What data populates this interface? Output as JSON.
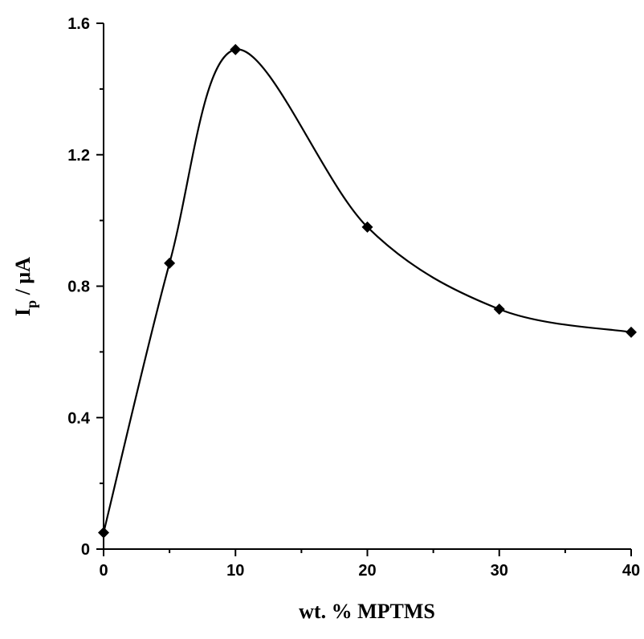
{
  "chart_data": {
    "type": "line",
    "title": "",
    "xlabel": "wt. % MPTMS",
    "ylabel": {
      "main": "I",
      "subscript": "p",
      "rest": " / μA"
    },
    "xlim": [
      0,
      40
    ],
    "ylim": [
      0,
      1.6
    ],
    "x_ticks": [
      0,
      10,
      20,
      30,
      40
    ],
    "x_tick_labels": [
      "0",
      "10",
      "20",
      "30",
      "40"
    ],
    "y_ticks": [
      0,
      0.4,
      0.8,
      1.2,
      1.6
    ],
    "y_tick_labels": [
      "0",
      "0.4",
      "0.8",
      "1.2",
      "1.6"
    ],
    "x_minor_step": 5,
    "y_minor_step": 0.2,
    "grid": false,
    "marker": "diamond",
    "series": [
      {
        "x": [
          0,
          5,
          10,
          20,
          30,
          40
        ],
        "y": [
          0.05,
          0.87,
          1.52,
          0.98,
          0.73,
          0.66
        ]
      }
    ],
    "colors": {
      "line": "#000000",
      "marker": "#000000",
      "axis": "#000000"
    }
  }
}
